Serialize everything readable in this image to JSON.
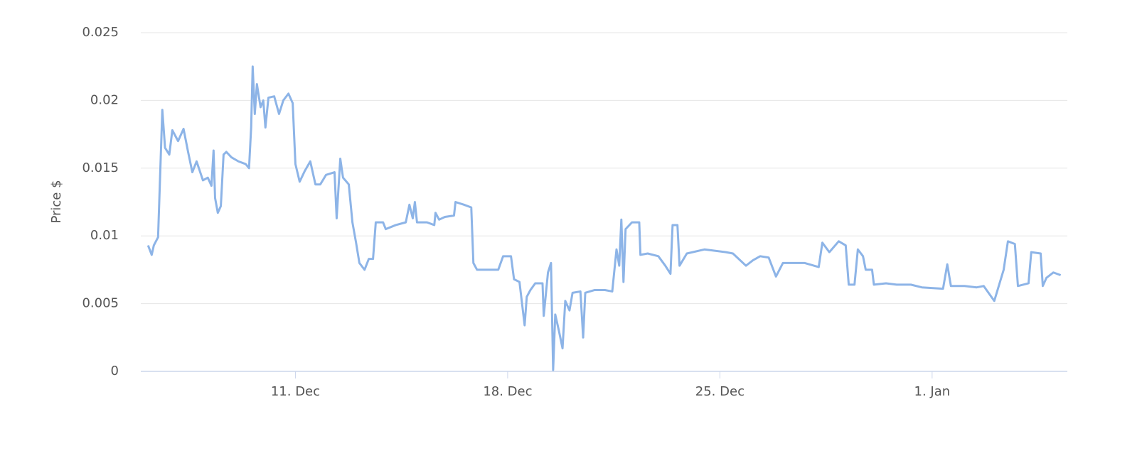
{
  "chart_data": {
    "type": "line",
    "y_label": "Price $",
    "x": [
      6.14,
      6.26,
      6.33,
      6.47,
      6.61,
      6.7,
      6.84,
      6.94,
      7.13,
      7.31,
      7.46,
      7.6,
      7.74,
      7.95,
      8.11,
      8.23,
      8.3,
      8.35,
      8.44,
      8.54,
      8.63,
      8.72,
      8.89,
      9.12,
      9.36,
      9.47,
      9.54,
      9.59,
      9.66,
      9.73,
      9.85,
      9.94,
      10.01,
      10.11,
      10.3,
      10.46,
      10.6,
      10.77,
      10.91,
      11.0,
      11.14,
      11.31,
      11.49,
      11.66,
      11.82,
      12.01,
      12.29,
      12.36,
      12.48,
      12.57,
      12.76,
      12.88,
      13.0,
      13.11,
      13.28,
      13.42,
      13.56,
      13.65,
      13.89,
      13.98,
      14.31,
      14.64,
      14.76,
      14.87,
      14.94,
      15.01,
      15.34,
      15.58,
      15.62,
      15.74,
      15.93,
      16.23,
      16.28,
      16.56,
      16.8,
      16.87,
      16.99,
      17.46,
      17.69,
      17.85,
      18.11,
      18.21,
      18.39,
      18.56,
      18.63,
      18.75,
      18.91,
      19.15,
      19.19,
      19.33,
      19.43,
      19.5,
      19.57,
      19.69,
      19.81,
      19.9,
      20.04,
      20.14,
      20.4,
      20.49,
      20.56,
      20.86,
      21.21,
      21.45,
      21.59,
      21.68,
      21.75,
      21.82,
      21.89,
      22.1,
      22.34,
      22.38,
      22.62,
      22.97,
      23.2,
      23.37,
      23.44,
      23.6,
      23.67,
      23.91,
      24.49,
      25.2,
      25.43,
      25.86,
      26.09,
      26.33,
      26.61,
      26.85,
      27.08,
      27.79,
      28.26,
      28.38,
      28.61,
      28.92,
      29.15,
      29.25,
      29.44,
      29.55,
      29.72,
      29.81,
      30.02,
      30.08,
      30.48,
      30.83,
      31.3,
      31.66,
      32.36,
      32.5,
      32.62,
      33.07,
      33.47,
      33.7,
      34.05,
      34.36,
      34.5,
      34.73,
      34.83,
      35.18,
      35.27,
      35.58,
      35.65,
      35.77,
      36.0,
      36.24
    ],
    "series": [
      {
        "name": "Price",
        "color": "#8db4e7",
        "values": [
          0.0093,
          0.0086,
          0.0093,
          0.0099,
          0.0193,
          0.0165,
          0.016,
          0.0178,
          0.017,
          0.0179,
          0.0162,
          0.0147,
          0.0155,
          0.0141,
          0.0143,
          0.0137,
          0.0163,
          0.0128,
          0.0117,
          0.0122,
          0.016,
          0.0162,
          0.0158,
          0.0155,
          0.0153,
          0.015,
          0.018,
          0.0225,
          0.019,
          0.0212,
          0.0195,
          0.02,
          0.018,
          0.0202,
          0.0203,
          0.019,
          0.02,
          0.0205,
          0.0198,
          0.0153,
          0.014,
          0.0148,
          0.0155,
          0.0138,
          0.0138,
          0.0145,
          0.0147,
          0.0113,
          0.0157,
          0.0143,
          0.0138,
          0.011,
          0.0095,
          0.008,
          0.0075,
          0.0083,
          0.0083,
          0.011,
          0.011,
          0.0105,
          0.0108,
          0.011,
          0.0123,
          0.0113,
          0.0125,
          0.011,
          0.011,
          0.0108,
          0.0117,
          0.0112,
          0.0114,
          0.0115,
          0.0125,
          0.0123,
          0.0121,
          0.008,
          0.0075,
          0.0075,
          0.0075,
          0.0085,
          0.0085,
          0.0068,
          0.0066,
          0.0034,
          0.0055,
          0.006,
          0.0065,
          0.0065,
          0.0041,
          0.0073,
          0.008,
          0.0001,
          0.0042,
          0.003,
          0.0017,
          0.0052,
          0.0045,
          0.0058,
          0.0059,
          0.0025,
          0.0058,
          0.006,
          0.006,
          0.0059,
          0.009,
          0.0078,
          0.0112,
          0.0066,
          0.0105,
          0.011,
          0.011,
          0.0086,
          0.0087,
          0.0085,
          0.0078,
          0.0072,
          0.0108,
          0.0108,
          0.0078,
          0.0087,
          0.009,
          0.0088,
          0.0087,
          0.0078,
          0.0082,
          0.0085,
          0.0084,
          0.007,
          0.008,
          0.008,
          0.0077,
          0.0095,
          0.0088,
          0.0096,
          0.0093,
          0.0064,
          0.0064,
          0.009,
          0.0085,
          0.0075,
          0.0075,
          0.0064,
          0.0065,
          0.0064,
          0.0064,
          0.0062,
          0.0061,
          0.0079,
          0.0063,
          0.0063,
          0.0062,
          0.0063,
          0.0052,
          0.0075,
          0.0096,
          0.0094,
          0.0063,
          0.0065,
          0.0088,
          0.0087,
          0.0063,
          0.0069,
          0.0073,
          0.0071
        ]
      }
    ],
    "xlim": [
      5.9,
      36.46
    ],
    "xticks": [
      {
        "value": 11,
        "label": "11. Dec"
      },
      {
        "value": 18,
        "label": "18. Dec"
      },
      {
        "value": 25,
        "label": "25. Dec"
      },
      {
        "value": 32,
        "label": "1. Jan"
      }
    ],
    "ylim": [
      0,
      0.025
    ],
    "yticks": [
      0,
      0.005,
      0.01,
      0.015,
      0.02,
      0.025
    ],
    "grid": true
  }
}
